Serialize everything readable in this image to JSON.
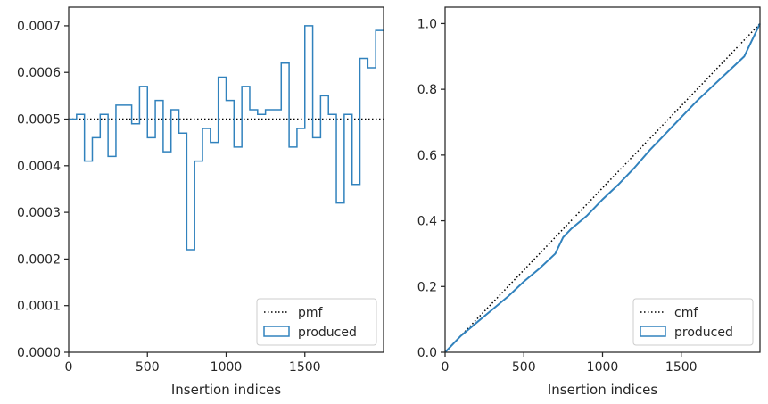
{
  "colors": {
    "produced": "#3182bd",
    "reference": "#000000",
    "axis": "#262626",
    "legend_border": "#cccccc"
  },
  "chart_data": [
    {
      "type": "histogram-step",
      "xlabel": "Insertion indices",
      "ylabel": "",
      "xlim": [
        0,
        2000
      ],
      "ylim": [
        0,
        0.00074
      ],
      "xticks": [
        0,
        500,
        1000,
        1500
      ],
      "xtick_labels": [
        "0",
        "500",
        "1000",
        "1500"
      ],
      "yticks": [
        0,
        0.0001,
        0.0002,
        0.0003,
        0.0004,
        0.0005,
        0.0006,
        0.0007
      ],
      "ytick_labels": [
        "0.0000",
        "0.0001",
        "0.0002",
        "0.0003",
        "0.0004",
        "0.0005",
        "0.0006",
        "0.0007"
      ],
      "grid": false,
      "legend_position": "lower right",
      "reference": {
        "name": "pmf",
        "style": "dotted",
        "value": 0.0005
      },
      "series": [
        {
          "name": "produced",
          "style": "step",
          "bin_width": 50,
          "values": [
            0.0005,
            0.00051,
            0.00041,
            0.00046,
            0.00051,
            0.00042,
            0.00053,
            0.00053,
            0.00049,
            0.00057,
            0.00046,
            0.00054,
            0.00043,
            0.00052,
            0.00047,
            0.00022,
            0.00041,
            0.00048,
            0.00045,
            0.00059,
            0.00054,
            0.00044,
            0.00057,
            0.00052,
            0.00051,
            0.00052,
            0.00052,
            0.00062,
            0.00044,
            0.00048,
            0.0007,
            0.00046,
            0.00055,
            0.00051,
            0.00032,
            0.00051,
            0.00036,
            0.00063,
            0.00061,
            0.00069
          ]
        }
      ]
    },
    {
      "type": "line",
      "xlabel": "Insertion indices",
      "ylabel": "",
      "xlim": [
        0,
        2000
      ],
      "ylim": [
        0,
        1.05
      ],
      "xticks": [
        0,
        500,
        1000,
        1500
      ],
      "xtick_labels": [
        "0",
        "500",
        "1000",
        "1500"
      ],
      "yticks": [
        0,
        0.2,
        0.4,
        0.6,
        0.8,
        1.0
      ],
      "ytick_labels": [
        "0.0",
        "0.2",
        "0.4",
        "0.6",
        "0.8",
        "1.0"
      ],
      "grid": false,
      "legend_position": "lower right",
      "reference": {
        "name": "cmf",
        "style": "dotted",
        "x": [
          0,
          2000
        ],
        "y": [
          0,
          1.0
        ]
      },
      "series": [
        {
          "name": "produced",
          "style": "line",
          "x": [
            0,
            50,
            100,
            200,
            300,
            400,
            500,
            600,
            700,
            750,
            800,
            900,
            1000,
            1100,
            1200,
            1300,
            1400,
            1500,
            1600,
            1700,
            1800,
            1900,
            2000
          ],
          "y": [
            0,
            0.025,
            0.05,
            0.09,
            0.13,
            0.17,
            0.215,
            0.255,
            0.3,
            0.35,
            0.375,
            0.415,
            0.465,
            0.51,
            0.56,
            0.615,
            0.665,
            0.715,
            0.765,
            0.81,
            0.855,
            0.9,
            1.0
          ]
        }
      ]
    }
  ]
}
